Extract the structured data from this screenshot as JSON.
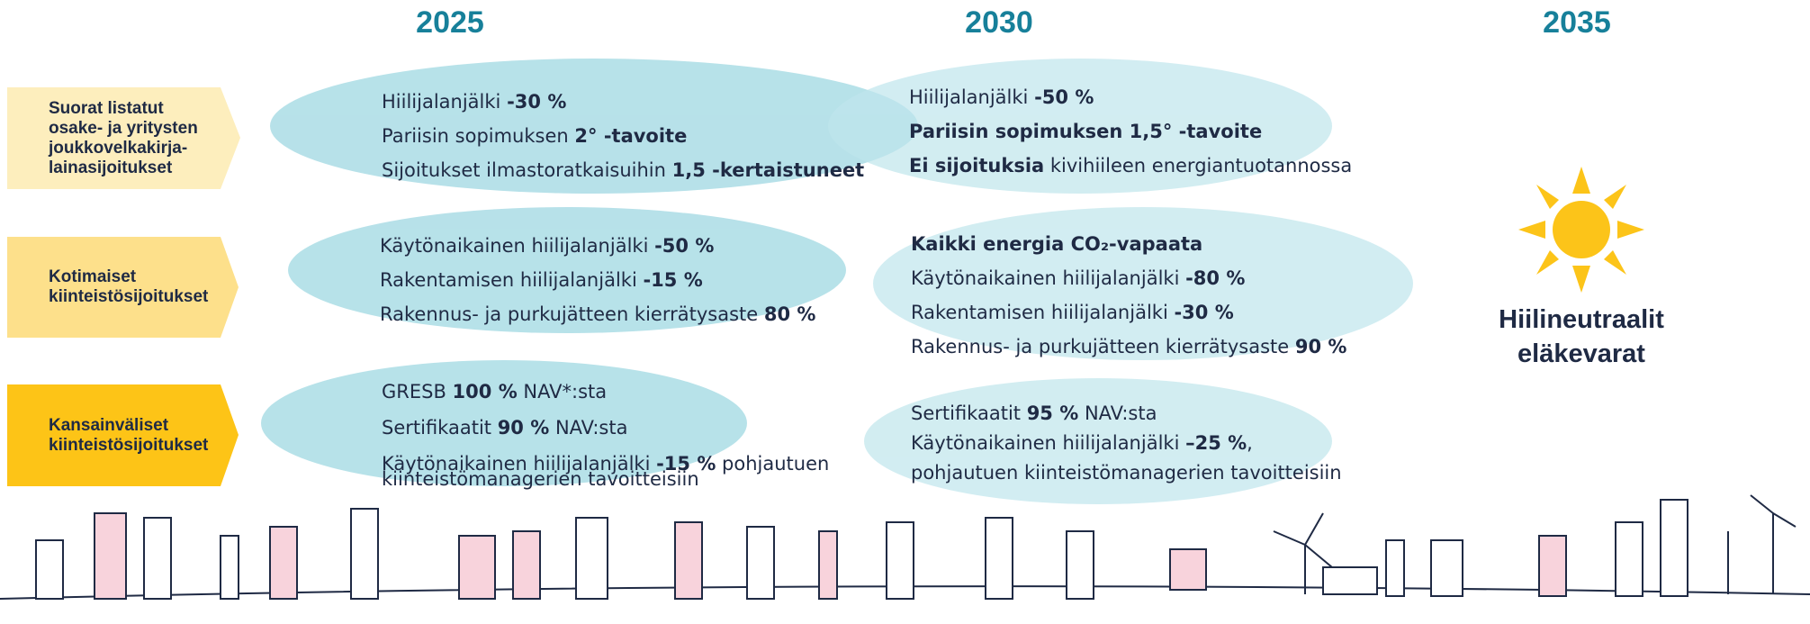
{
  "years": [
    "2025",
    "2030",
    "2035"
  ],
  "rows": [
    {
      "label": [
        "Suorat listatut",
        "osake- ja yritysten",
        "joukkovelkakirja-",
        "lainasijoitukset"
      ],
      "cells": [
        [
          [
            {
              "text": "Hiilijalanjälki "
            },
            {
              "text": "-30 %",
              "bold": true
            }
          ],
          [
            {
              "text": "Pariisin sopimuksen "
            },
            {
              "text": "2° -tavoite",
              "bold": true
            }
          ],
          [
            {
              "text": "Sijoitukset ilmastoratkaisuihin "
            },
            {
              "text": "1,5 -kertaistuneet",
              "bold": true
            }
          ]
        ],
        [
          [
            {
              "text": "Hiilijalanjälki "
            },
            {
              "text": "-50 %",
              "bold": true
            }
          ],
          [
            {
              "text": "Pariisin sopimuksen 1,5° -tavoite",
              "bold": true
            }
          ],
          [
            {
              "text": "Ei sijoituksia",
              "bold": true
            },
            {
              "text": " kivihiileen energiantuotannossa"
            }
          ]
        ]
      ]
    },
    {
      "label": [
        "Kotimaiset",
        "kiinteistösijoitukset"
      ],
      "cells": [
        [
          [
            {
              "text": "Käytönaikainen hiilijalanjälki "
            },
            {
              "text": "-50 %",
              "bold": true
            }
          ],
          [
            {
              "text": "Rakentamisen hiilijalanjälki "
            },
            {
              "text": "-15 %",
              "bold": true
            }
          ],
          [
            {
              "text": "Rakennus- ja purkujätteen kierrätysaste "
            },
            {
              "text": "80 %",
              "bold": true
            }
          ]
        ],
        [
          [
            {
              "text": "Kaikki energia CO₂-vapaata",
              "bold": true
            }
          ],
          [
            {
              "text": "Käytönaikainen hiilijalanjälki "
            },
            {
              "text": "-80 %",
              "bold": true
            }
          ],
          [
            {
              "text": "Rakentamisen hiilijalanjälki "
            },
            {
              "text": "-30 %",
              "bold": true
            }
          ],
          [
            {
              "text": "Rakennus- ja purkujätteen kierrätysaste "
            },
            {
              "text": "90 %",
              "bold": true
            }
          ]
        ]
      ]
    },
    {
      "label": [
        "Kansainväliset",
        "kiinteistösijoitukset"
      ],
      "cells": [
        [
          [
            {
              "text": "GRESB "
            },
            {
              "text": "100 %",
              "bold": true
            },
            {
              "text": " NAV*:sta"
            }
          ],
          [
            {
              "text": "Sertifikaatit "
            },
            {
              "text": "90 %",
              "bold": true
            },
            {
              "text": " NAV:sta"
            }
          ],
          [
            {
              "text": "Käytönaikainen hiilijalanjälki "
            },
            {
              "text": "-15 %",
              "bold": true
            },
            {
              "text": " pohjautuen"
            }
          ],
          [
            {
              "text": "kiinteistömanagerien tavoitteisiin"
            }
          ]
        ],
        [
          [
            {
              "text": "Sertifikaatit "
            },
            {
              "text": "95 %",
              "bold": true
            },
            {
              "text": " NAV:sta"
            }
          ],
          [
            {
              "text": "Käytönaikainen hiilijalanjälki "
            },
            {
              "text": "–25 %",
              "bold": true
            },
            {
              "text": ","
            }
          ],
          [
            {
              "text": "pohjautuen kiinteistömanagerien tavoitteisiin"
            }
          ]
        ]
      ]
    }
  ],
  "goal": [
    "Hiilineutraalit",
    "eläkevarat"
  ]
}
